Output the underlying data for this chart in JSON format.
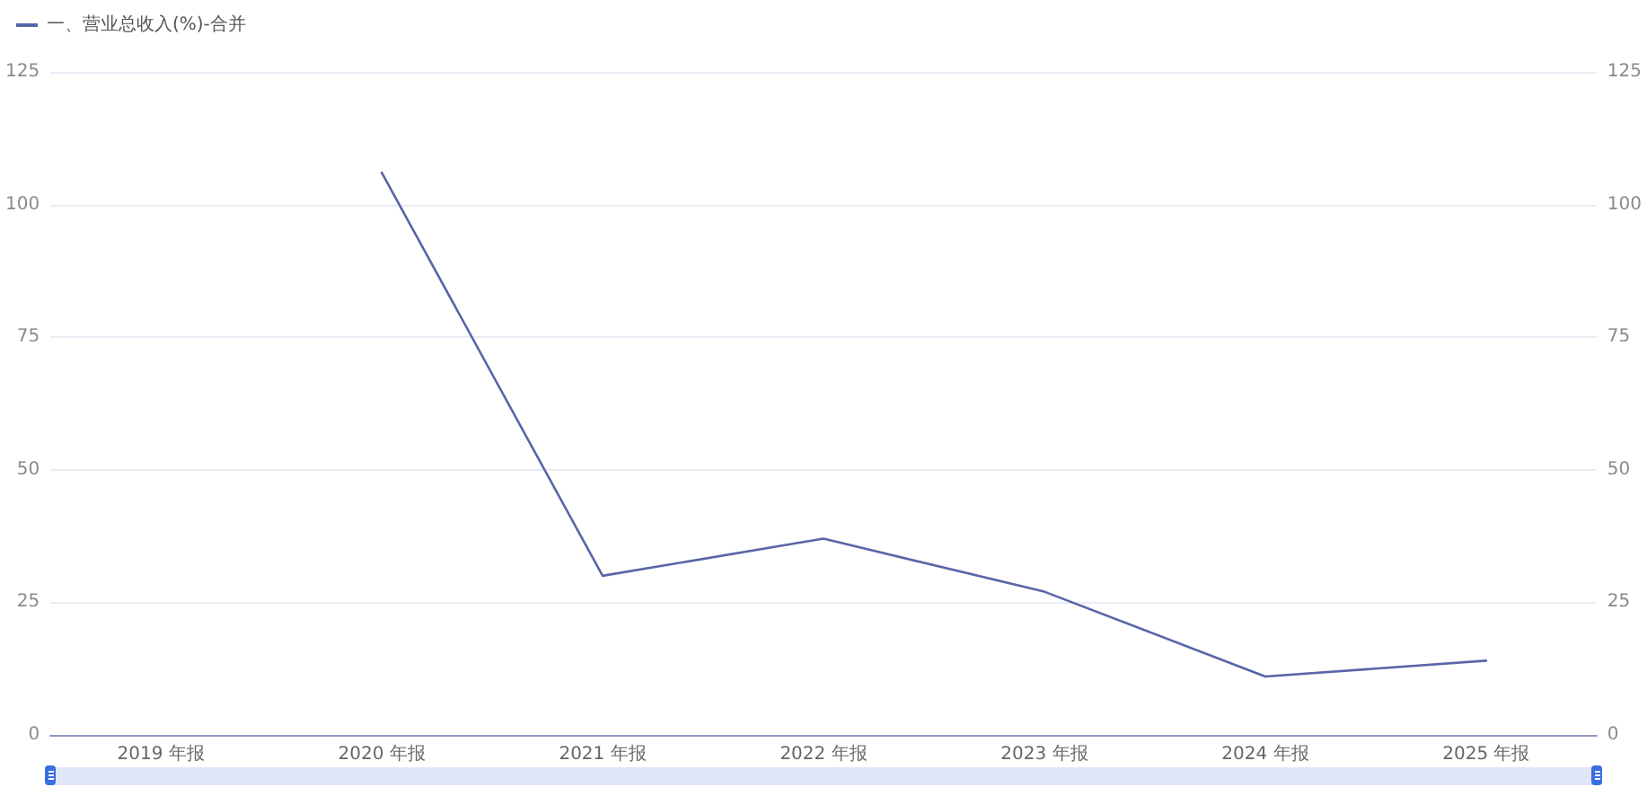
{
  "chart_data": {
    "type": "line",
    "categories": [
      "2019 年报",
      "2020 年报",
      "2021 年报",
      "2022 年报",
      "2023 年报",
      "2024 年报",
      "2025 年报"
    ],
    "series": [
      {
        "name": "一、营业总收入(%)-合并",
        "color": "#5865a8",
        "values": [
          null,
          106,
          30,
          37,
          27,
          11,
          14
        ]
      }
    ],
    "ylim": [
      0,
      125
    ],
    "yticks": [
      0,
      25,
      50,
      75,
      100,
      125
    ],
    "y2lim": [
      0,
      125
    ],
    "y2ticks": [
      0,
      25,
      50,
      75,
      100,
      125
    ],
    "grid": "y",
    "legend": "top left",
    "marker": "none",
    "line_style": "solid"
  }
}
